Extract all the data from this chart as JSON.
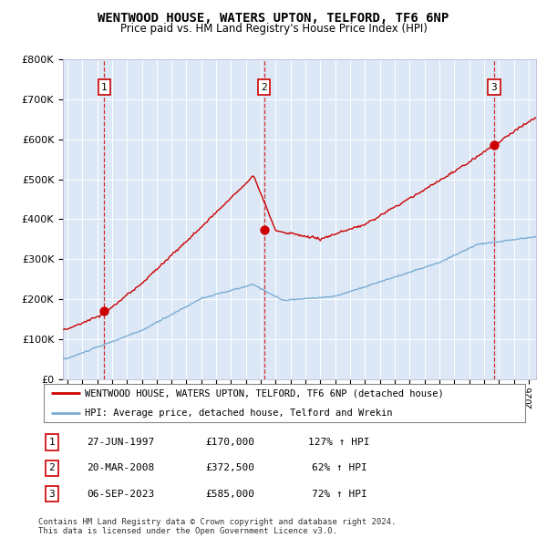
{
  "title": "WENTWOOD HOUSE, WATERS UPTON, TELFORD, TF6 6NP",
  "subtitle": "Price paid vs. HM Land Registry's House Price Index (HPI)",
  "ylabel_max": 800000,
  "yticks": [
    0,
    100000,
    200000,
    300000,
    400000,
    500000,
    600000,
    700000,
    800000
  ],
  "ytick_labels": [
    "£0",
    "£100K",
    "£200K",
    "£300K",
    "£400K",
    "£500K",
    "£600K",
    "£700K",
    "£800K"
  ],
  "sale_dates": [
    "1997-06-27",
    "2008-03-20",
    "2023-09-06"
  ],
  "sale_prices": [
    170000,
    372500,
    585000
  ],
  "sale_labels": [
    "1",
    "2",
    "3"
  ],
  "sale_info": [
    {
      "num": "1",
      "date": "27-JUN-1997",
      "price": "£170,000",
      "hpi": "127% ↑ HPI"
    },
    {
      "num": "2",
      "date": "20-MAR-2008",
      "price": "£372,500",
      "hpi": "62% ↑ HPI"
    },
    {
      "num": "3",
      "date": "06-SEP-2023",
      "price": "£585,000",
      "hpi": "72% ↑ HPI"
    }
  ],
  "line_color_red": "#cc0000",
  "line_color_blue": "#7aadd4",
  "background_color": "#ffffff",
  "plot_bg_color": "#dce8f5",
  "legend_label_red": "WENTWOOD HOUSE, WATERS UPTON, TELFORD, TF6 6NP (detached house)",
  "legend_label_blue": "HPI: Average price, detached house, Telford and Wrekin",
  "footer": "Contains HM Land Registry data © Crown copyright and database right 2024.\nThis data is licensed under the Open Government Licence v3.0.",
  "xmin": 1994.7,
  "xmax": 2026.5
}
